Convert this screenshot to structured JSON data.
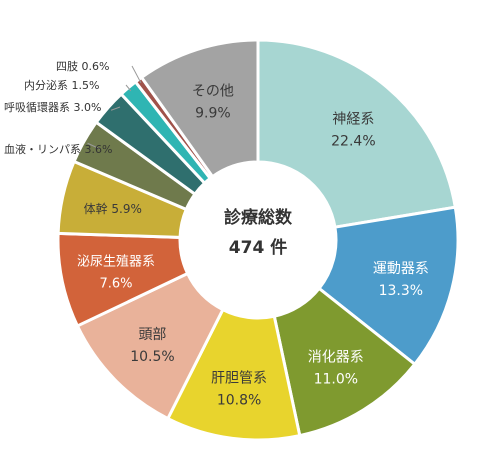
{
  "chart_data": {
    "type": "pie",
    "donut": true,
    "start": "12 o'clock, clockwise",
    "center": {
      "line1": "診療総数",
      "line2": "474 件"
    },
    "slices": [
      {
        "name": "神経系",
        "value": 22.4,
        "label": "22.4%",
        "color": "#a7d6d2",
        "text_color": "#3a3a3a"
      },
      {
        "name": "運動器系",
        "value": 13.3,
        "label": "13.3%",
        "color": "#4d9ccb",
        "text_color": "#ffffff"
      },
      {
        "name": "消化器系",
        "value": 11.0,
        "label": "11.0%",
        "color": "#7f9a2f",
        "text_color": "#ffffff"
      },
      {
        "name": "肝胆管系",
        "value": 10.8,
        "label": "10.8%",
        "color": "#e8d42d",
        "text_color": "#3a3a3a"
      },
      {
        "name": "頭部",
        "value": 10.5,
        "label": "10.5%",
        "color": "#e9b29a",
        "text_color": "#3a3a3a"
      },
      {
        "name": "泌尿生殖器系",
        "value": 7.6,
        "label": "7.6%",
        "color": "#d2633a",
        "text_color": "#ffffff"
      },
      {
        "name": "体幹",
        "value": 5.9,
        "label": "5.9%",
        "color": "#c8ae38",
        "text_color": "#3a3a3a"
      },
      {
        "name": "血液・リンパ系",
        "value": 3.6,
        "label": "3.6%",
        "color": "#6f7a4c",
        "text_color": "#3a3a3a"
      },
      {
        "name": "呼吸循環器系",
        "value": 3.0,
        "label": "3.0%",
        "color": "#2f6f6e",
        "text_color": "#3a3a3a"
      },
      {
        "name": "内分泌系",
        "value": 1.5,
        "label": "1.5%",
        "color": "#2fb5b3",
        "text_color": "#3a3a3a"
      },
      {
        "name": "四肢",
        "value": 0.6,
        "label": "0.6%",
        "color": "#a0524a",
        "text_color": "#3a3a3a"
      },
      {
        "name": "その他",
        "value": 9.9,
        "label": "9.9%",
        "color": "#a3a3a3",
        "text_color": "#3a3a3a"
      }
    ]
  }
}
